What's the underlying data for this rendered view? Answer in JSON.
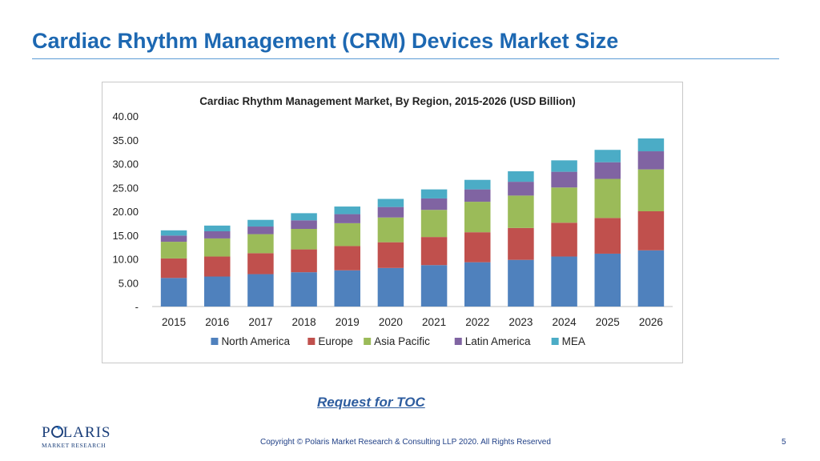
{
  "slide": {
    "title": "Cardiac Rhythm Management (CRM) Devices Market Size",
    "toc_link": "Request for TOC",
    "copyright": "Copyright © Polaris Market Research & Consulting LLP 2020. All Rights Reserved",
    "page_number": "5",
    "logo_main": "POLARIS",
    "logo_sub": "MARKET RESEARCH"
  },
  "chart_data": {
    "type": "bar",
    "stacked": true,
    "title": "Cardiac Rhythm Management Market, By Region, 2015-2026 (USD Billion)",
    "xlabel": "",
    "ylabel": "",
    "ylim": [
      0,
      40
    ],
    "yticks": [
      "-",
      "5.00",
      "10.00",
      "15.00",
      "20.00",
      "25.00",
      "30.00",
      "35.00",
      "40.00"
    ],
    "grid": false,
    "legend_position": "bottom",
    "categories": [
      "2015",
      "2016",
      "2017",
      "2018",
      "2019",
      "2020",
      "2021",
      "2022",
      "2023",
      "2024",
      "2025",
      "2026"
    ],
    "series": [
      {
        "name": "North America",
        "color": "#4f81bd",
        "values": [
          6.0,
          6.3,
          6.8,
          7.2,
          7.6,
          8.1,
          8.7,
          9.3,
          9.8,
          10.5,
          11.1,
          11.8
        ]
      },
      {
        "name": "Europe",
        "color": "#c0504d",
        "values": [
          4.1,
          4.2,
          4.4,
          4.8,
          5.1,
          5.4,
          5.9,
          6.3,
          6.7,
          7.1,
          7.5,
          8.2
        ]
      },
      {
        "name": "Asia Pacific",
        "color": "#9bbb59",
        "values": [
          3.5,
          3.8,
          4.0,
          4.3,
          4.8,
          5.2,
          5.7,
          6.4,
          6.8,
          7.4,
          8.2,
          8.8
        ]
      },
      {
        "name": "Latin America",
        "color": "#8064a2",
        "values": [
          1.3,
          1.5,
          1.6,
          1.8,
          1.9,
          2.2,
          2.4,
          2.6,
          2.9,
          3.3,
          3.5,
          3.8
        ]
      },
      {
        "name": "MEA",
        "color": "#4bacc6",
        "values": [
          1.1,
          1.2,
          1.4,
          1.5,
          1.6,
          1.7,
          1.9,
          2.0,
          2.2,
          2.4,
          2.6,
          2.7
        ]
      }
    ]
  }
}
